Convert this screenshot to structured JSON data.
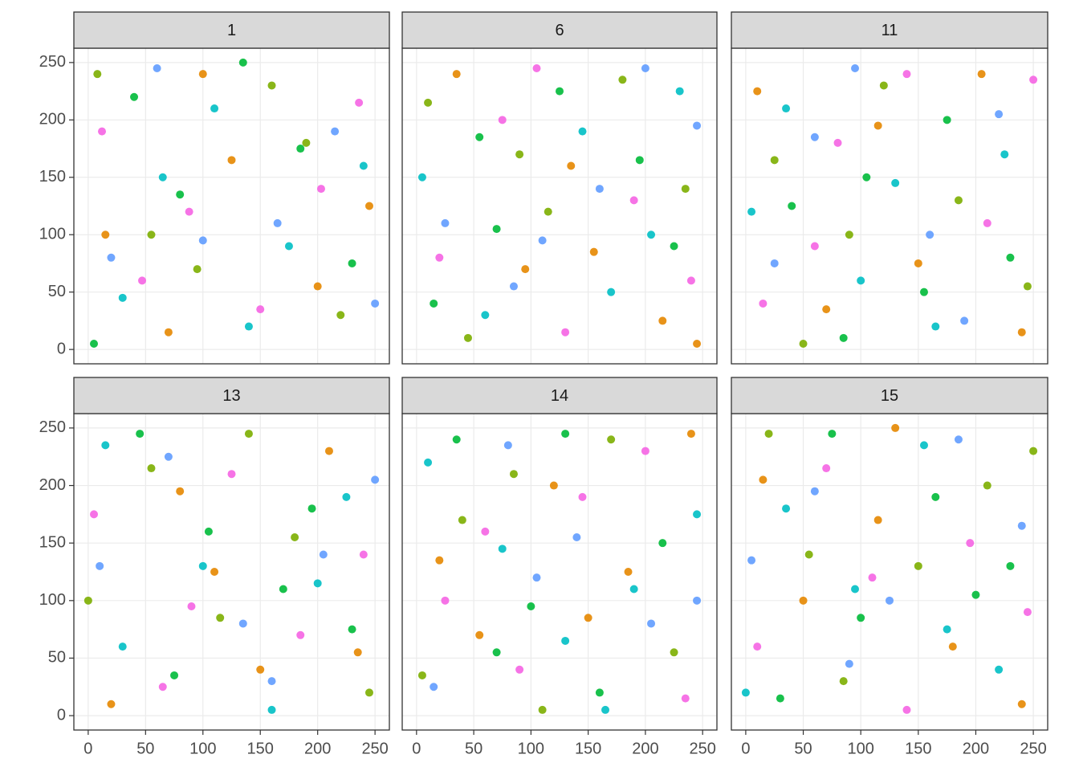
{
  "chart_data": [
    {
      "type": "scatter",
      "title": "1",
      "xlim": [
        -12.5,
        262.5
      ],
      "ylim": [
        -12.5,
        262.5
      ],
      "xticks": [
        0,
        50,
        100,
        150,
        200,
        250
      ],
      "yticks": [
        0,
        50,
        100,
        150,
        200,
        250
      ],
      "grid": true,
      "series": [
        {
          "color": "#F564E3",
          "x": [
            12,
            88,
            150,
            203,
            47,
            236
          ],
          "values": [
            190,
            120,
            35,
            140,
            60,
            215
          ]
        },
        {
          "color": "#00BFC4",
          "x": [
            30,
            110,
            175,
            240,
            65,
            140
          ],
          "values": [
            45,
            210,
            90,
            160,
            150,
            20
          ]
        },
        {
          "color": "#7CAE00",
          "x": [
            8,
            95,
            160,
            220,
            55,
            190
          ],
          "values": [
            240,
            70,
            230,
            30,
            100,
            180
          ]
        },
        {
          "color": "#E58700",
          "x": [
            70,
            125,
            200,
            15,
            245,
            100
          ],
          "values": [
            15,
            165,
            55,
            100,
            125,
            240
          ]
        },
        {
          "color": "#00BA38",
          "x": [
            40,
            135,
            185,
            230,
            5,
            80
          ],
          "values": [
            220,
            250,
            175,
            75,
            5,
            135
          ]
        },
        {
          "color": "#619CFF",
          "x": [
            100,
            165,
            20,
            215,
            60,
            250
          ],
          "values": [
            95,
            110,
            80,
            190,
            245,
            40
          ]
        }
      ]
    },
    {
      "type": "scatter",
      "title": "6",
      "xlim": [
        -12.5,
        262.5
      ],
      "ylim": [
        -12.5,
        262.5
      ],
      "xticks": [
        0,
        50,
        100,
        150,
        200,
        250
      ],
      "yticks": [
        0,
        50,
        100,
        150,
        200,
        250
      ],
      "grid": true,
      "series": [
        {
          "color": "#F564E3",
          "x": [
            20,
            75,
            130,
            190,
            240,
            105
          ],
          "values": [
            80,
            200,
            15,
            130,
            60,
            245
          ]
        },
        {
          "color": "#00BFC4",
          "x": [
            5,
            60,
            145,
            205,
            230,
            170
          ],
          "values": [
            150,
            30,
            190,
            100,
            225,
            50
          ]
        },
        {
          "color": "#7CAE00",
          "x": [
            45,
            115,
            180,
            10,
            235,
            90
          ],
          "values": [
            10,
            120,
            235,
            215,
            140,
            170
          ]
        },
        {
          "color": "#E58700",
          "x": [
            35,
            95,
            155,
            215,
            245,
            135
          ],
          "values": [
            240,
            70,
            85,
            25,
            5,
            160
          ]
        },
        {
          "color": "#00BA38",
          "x": [
            70,
            125,
            195,
            15,
            225,
            55
          ],
          "values": [
            105,
            225,
            165,
            40,
            90,
            185
          ]
        },
        {
          "color": "#619CFF",
          "x": [
            85,
            160,
            245,
            25,
            110,
            200
          ],
          "values": [
            55,
            140,
            195,
            110,
            95,
            245
          ]
        }
      ]
    },
    {
      "type": "scatter",
      "title": "11",
      "xlim": [
        -12.5,
        262.5
      ],
      "ylim": [
        -12.5,
        262.5
      ],
      "xticks": [
        0,
        50,
        100,
        150,
        200,
        250
      ],
      "yticks": [
        0,
        50,
        100,
        150,
        200,
        250
      ],
      "grid": true,
      "series": [
        {
          "color": "#F564E3",
          "x": [
            15,
            80,
            140,
            210,
            250,
            60
          ],
          "values": [
            40,
            180,
            240,
            110,
            235,
            90
          ]
        },
        {
          "color": "#00BFC4",
          "x": [
            35,
            100,
            165,
            225,
            5,
            130
          ],
          "values": [
            210,
            60,
            20,
            170,
            120,
            145
          ]
        },
        {
          "color": "#7CAE00",
          "x": [
            50,
            120,
            185,
            245,
            25,
            90
          ],
          "values": [
            5,
            230,
            130,
            55,
            165,
            100
          ]
        },
        {
          "color": "#E58700",
          "x": [
            10,
            70,
            150,
            205,
            240,
            115
          ],
          "values": [
            225,
            35,
            75,
            240,
            15,
            195
          ]
        },
        {
          "color": "#00BA38",
          "x": [
            40,
            105,
            175,
            230,
            85,
            155
          ],
          "values": [
            125,
            150,
            200,
            80,
            10,
            50
          ]
        },
        {
          "color": "#619CFF",
          "x": [
            25,
            95,
            160,
            220,
            60,
            190
          ],
          "values": [
            75,
            245,
            100,
            205,
            185,
            25
          ]
        }
      ]
    },
    {
      "type": "scatter",
      "title": "13",
      "xlim": [
        -12.5,
        262.5
      ],
      "ylim": [
        -12.5,
        262.5
      ],
      "xticks": [
        0,
        50,
        100,
        150,
        200,
        250
      ],
      "yticks": [
        0,
        50,
        100,
        150,
        200,
        250
      ],
      "grid": true,
      "series": [
        {
          "color": "#F564E3",
          "x": [
            5,
            65,
            125,
            185,
            240,
            90
          ],
          "values": [
            175,
            25,
            210,
            70,
            140,
            95
          ]
        },
        {
          "color": "#00BFC4",
          "x": [
            30,
            100,
            160,
            225,
            15,
            200
          ],
          "values": [
            60,
            130,
            5,
            190,
            235,
            115
          ]
        },
        {
          "color": "#7CAE00",
          "x": [
            55,
            115,
            180,
            245,
            0,
            140
          ],
          "values": [
            215,
            85,
            155,
            20,
            100,
            245
          ]
        },
        {
          "color": "#E58700",
          "x": [
            20,
            80,
            150,
            210,
            110,
            235
          ],
          "values": [
            10,
            195,
            40,
            230,
            125,
            55
          ]
        },
        {
          "color": "#00BA38",
          "x": [
            45,
            105,
            170,
            230,
            75,
            195
          ],
          "values": [
            245,
            160,
            110,
            75,
            35,
            180
          ]
        },
        {
          "color": "#619CFF",
          "x": [
            10,
            70,
            135,
            205,
            250,
            160
          ],
          "values": [
            130,
            225,
            80,
            140,
            205,
            30
          ]
        }
      ]
    },
    {
      "type": "scatter",
      "title": "14",
      "xlim": [
        -12.5,
        262.5
      ],
      "ylim": [
        -12.5,
        262.5
      ],
      "xticks": [
        0,
        50,
        100,
        150,
        200,
        250
      ],
      "yticks": [
        0,
        50,
        100,
        150,
        200,
        250
      ],
      "grid": true,
      "series": [
        {
          "color": "#F564E3",
          "x": [
            25,
            90,
            145,
            200,
            235,
            60
          ],
          "values": [
            100,
            40,
            190,
            230,
            15,
            160
          ]
        },
        {
          "color": "#00BFC4",
          "x": [
            10,
            75,
            130,
            190,
            245,
            165
          ],
          "values": [
            220,
            145,
            65,
            110,
            175,
            5
          ]
        },
        {
          "color": "#7CAE00",
          "x": [
            40,
            110,
            170,
            225,
            5,
            85
          ],
          "values": [
            170,
            5,
            240,
            55,
            35,
            210
          ]
        },
        {
          "color": "#E58700",
          "x": [
            55,
            120,
            185,
            240,
            20,
            150
          ],
          "values": [
            70,
            200,
            125,
            245,
            135,
            85
          ]
        },
        {
          "color": "#00BA38",
          "x": [
            35,
            100,
            160,
            215,
            70,
            130
          ],
          "values": [
            240,
            95,
            20,
            150,
            55,
            245
          ]
        },
        {
          "color": "#619CFF",
          "x": [
            15,
            80,
            140,
            205,
            245,
            105
          ],
          "values": [
            25,
            235,
            155,
            80,
            100,
            120
          ]
        }
      ]
    },
    {
      "type": "scatter",
      "title": "15",
      "xlim": [
        -12.5,
        262.5
      ],
      "ylim": [
        -12.5,
        262.5
      ],
      "xticks": [
        0,
        50,
        100,
        150,
        200,
        250
      ],
      "yticks": [
        0,
        50,
        100,
        150,
        200,
        250
      ],
      "grid": true,
      "series": [
        {
          "color": "#F564E3",
          "x": [
            10,
            70,
            140,
            195,
            245,
            110
          ],
          "values": [
            60,
            215,
            5,
            150,
            90,
            120
          ]
        },
        {
          "color": "#00BFC4",
          "x": [
            35,
            95,
            155,
            220,
            0,
            175
          ],
          "values": [
            180,
            110,
            235,
            40,
            20,
            75
          ]
        },
        {
          "color": "#7CAE00",
          "x": [
            20,
            85,
            150,
            210,
            250,
            55
          ],
          "values": [
            245,
            30,
            130,
            200,
            230,
            140
          ]
        },
        {
          "color": "#E58700",
          "x": [
            50,
            115,
            180,
            240,
            15,
            130
          ],
          "values": [
            100,
            170,
            60,
            10,
            205,
            250
          ]
        },
        {
          "color": "#00BA38",
          "x": [
            30,
            100,
            165,
            230,
            75,
            200
          ],
          "values": [
            15,
            85,
            190,
            130,
            245,
            105
          ]
        },
        {
          "color": "#619CFF",
          "x": [
            5,
            60,
            125,
            185,
            240,
            90
          ],
          "values": [
            135,
            195,
            100,
            240,
            165,
            45
          ]
        }
      ]
    }
  ]
}
